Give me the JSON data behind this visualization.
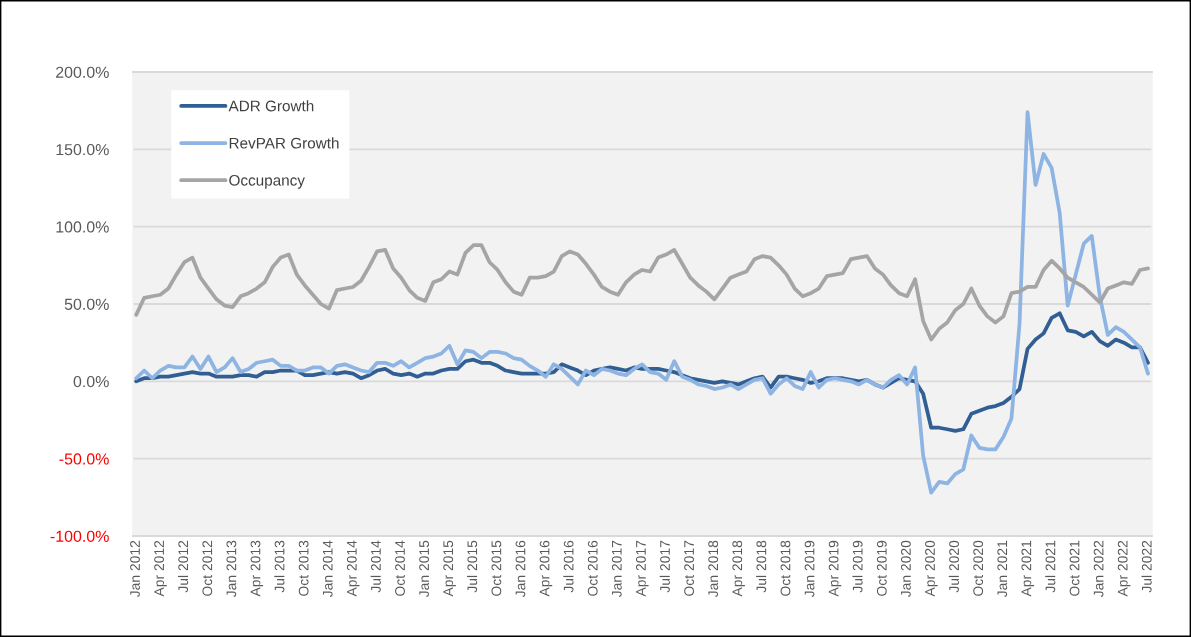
{
  "chart_data": {
    "type": "line",
    "categories": [
      "Jan 2012",
      null,
      null,
      "Apr 2012",
      null,
      null,
      "Jul 2012",
      null,
      null,
      "Oct 2012",
      null,
      null,
      "Jan 2013",
      null,
      null,
      "Apr 2013",
      null,
      null,
      "Jul 2013",
      null,
      null,
      "Oct 2013",
      null,
      null,
      "Jan 2014",
      null,
      null,
      "Apr 2014",
      null,
      null,
      "Jul 2014",
      null,
      null,
      "Oct 2014",
      null,
      null,
      "Jan 2015",
      null,
      null,
      "Apr 2015",
      null,
      null,
      "Jul 2015",
      null,
      null,
      "Oct 2015",
      null,
      null,
      "Jan 2016",
      null,
      null,
      "Apr 2016",
      null,
      null,
      "Jul 2016",
      null,
      null,
      "Oct 2016",
      null,
      null,
      "Jan 2017",
      null,
      null,
      "Apr 2017",
      null,
      null,
      "Jul 2017",
      null,
      null,
      "Oct 2017",
      null,
      null,
      "Jan 2018",
      null,
      null,
      "Apr 2018",
      null,
      null,
      "Jul 2018",
      null,
      null,
      "Oct 2018",
      null,
      null,
      "Jan 2019",
      null,
      null,
      "Apr 2019",
      null,
      null,
      "Jul 2019",
      null,
      null,
      "Oct 2019",
      null,
      null,
      "Jan 2020",
      null,
      null,
      "Apr 2020",
      null,
      null,
      "Jul 2020",
      null,
      null,
      "Oct 2020",
      null,
      null,
      "Jan 2021",
      null,
      null,
      "Apr 2021",
      null,
      null,
      "Jul 2021",
      null,
      null,
      "Oct 2021",
      null,
      null,
      "Jan 2022",
      null,
      null,
      "Apr 2022",
      null,
      null,
      "Jul 2022"
    ],
    "series": [
      {
        "name": "ADR Growth",
        "color": "#325f93",
        "values": [
          0,
          2,
          2,
          3,
          3,
          4,
          5,
          6,
          5,
          5,
          3,
          3,
          3,
          4,
          4,
          3,
          6,
          6,
          7,
          7,
          7,
          4,
          4,
          5,
          6,
          5,
          6,
          5,
          2,
          4,
          7,
          8,
          5,
          4,
          5,
          3,
          5,
          5,
          7,
          8,
          8,
          13,
          14,
          12,
          12,
          10,
          7,
          6,
          5,
          5,
          5,
          5,
          6,
          11,
          9,
          7,
          4,
          7,
          8,
          9,
          8,
          7,
          9,
          8,
          8,
          8,
          7,
          6,
          4,
          2,
          1,
          0,
          -1,
          0,
          -1,
          -2,
          0,
          2,
          3,
          -4,
          3,
          3,
          2,
          1,
          -1,
          0,
          2,
          2,
          2,
          1,
          0,
          1,
          -2,
          -4,
          -1,
          2,
          1,
          0,
          -8,
          -30,
          -30,
          -31,
          -32,
          -31,
          -21,
          -19,
          -17,
          -16,
          -14,
          -10,
          -5,
          21,
          27,
          31,
          41,
          44,
          33,
          32,
          29,
          32,
          26,
          23,
          27,
          25,
          22,
          22,
          12
        ]
      },
      {
        "name": "RevPAR Growth",
        "color": "#8eb4e3",
        "values": [
          2,
          7,
          2,
          7,
          10,
          9,
          9,
          16,
          8,
          16,
          6,
          9,
          15,
          6,
          8,
          12,
          13,
          14,
          10,
          10,
          7,
          7,
          9,
          9,
          5,
          10,
          11,
          9,
          7,
          6,
          12,
          12,
          10,
          13,
          9,
          12,
          15,
          16,
          18,
          23,
          11,
          20,
          19,
          15,
          19,
          19,
          18,
          15,
          14,
          10,
          7,
          3,
          11,
          8,
          3,
          -2,
          7,
          4,
          8,
          7,
          5,
          4,
          8,
          11,
          6,
          5,
          1,
          13,
          3,
          1,
          -2,
          -3,
          -5,
          -4,
          -2,
          -5,
          -2,
          1,
          2,
          -8,
          -2,
          2,
          -3,
          -5,
          6,
          -4,
          1,
          2,
          1,
          0,
          -2,
          1,
          -2,
          -4,
          1,
          4,
          -2,
          9,
          -48,
          -72,
          -65,
          -66,
          -60,
          -57,
          -35,
          -43,
          -44,
          -44,
          -36,
          -24,
          37,
          174,
          127,
          147,
          138,
          109,
          49,
          69,
          89,
          94,
          55,
          30,
          35,
          32,
          27,
          22,
          5
        ]
      },
      {
        "name": "Occupancy",
        "color": "#a5a5a5",
        "values": [
          43,
          54,
          55,
          56,
          60,
          69,
          77,
          80,
          67,
          60,
          53,
          49,
          48,
          55,
          57,
          60,
          64,
          74,
          80,
          82,
          69,
          62,
          56,
          50,
          47,
          59,
          60,
          61,
          65,
          74,
          84,
          85,
          73,
          67,
          59,
          54,
          52,
          64,
          66,
          71,
          69,
          83,
          88,
          88,
          77,
          72,
          64,
          58,
          56,
          67,
          67,
          68,
          71,
          81,
          84,
          82,
          76,
          69,
          61,
          58,
          56,
          64,
          69,
          72,
          71,
          80,
          82,
          85,
          76,
          67,
          62,
          58,
          53,
          60,
          67,
          69,
          71,
          79,
          81,
          80,
          75,
          69,
          60,
          55,
          57,
          60,
          68,
          69,
          70,
          79,
          80,
          81,
          73,
          69,
          62,
          57,
          55,
          66,
          39,
          27,
          34,
          38,
          46,
          50,
          60,
          49,
          42,
          38,
          42,
          57,
          58,
          61,
          61,
          72,
          78,
          73,
          67,
          64,
          61,
          56,
          51,
          60,
          62,
          64,
          63,
          72,
          73
        ]
      }
    ],
    "ylim": [
      -100,
      200
    ],
    "yticks": [
      {
        "value": -100,
        "label": "-100.0%"
      },
      {
        "value": -50,
        "label": "-50.0%"
      },
      {
        "value": 0,
        "label": "0.0%"
      },
      {
        "value": 50,
        "label": "50.0%"
      },
      {
        "value": 100,
        "label": "100.0%"
      },
      {
        "value": 150,
        "label": "150.0%"
      },
      {
        "value": 200,
        "label": "200.0%"
      }
    ],
    "grid": "y",
    "legend": "top left",
    "line_style": "solid"
  }
}
